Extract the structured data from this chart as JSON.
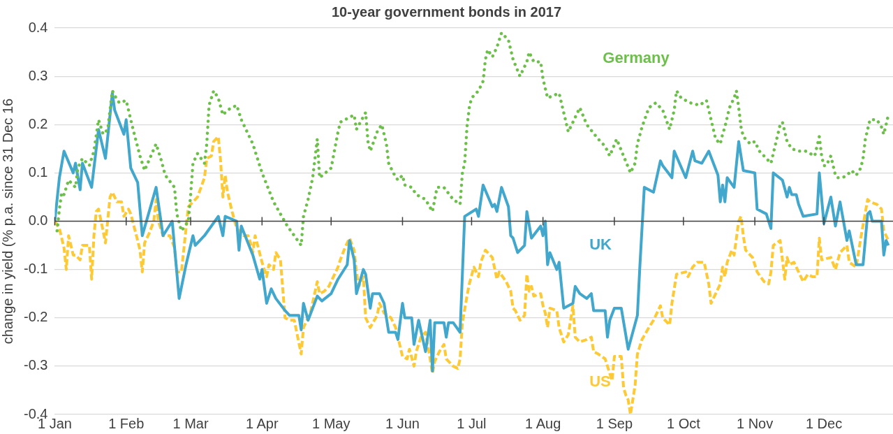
{
  "chart_data": {
    "type": "line",
    "title": "10-year government bonds in 2017",
    "ylabel": "change in yield (% p.a. since 31 Dec 16",
    "grid": "y",
    "xlim": [
      "2017-01-01",
      "2017-12-31"
    ],
    "xticks": [
      {
        "value": "2017-01-01",
        "label": "1 Jan"
      },
      {
        "value": "2017-02-01",
        "label": "1 Feb"
      },
      {
        "value": "2017-03-01",
        "label": "1 Mar"
      },
      {
        "value": "2017-04-01",
        "label": "1 Apr"
      },
      {
        "value": "2017-05-01",
        "label": "1 May"
      },
      {
        "value": "2017-06-01",
        "label": "1 Jun"
      },
      {
        "value": "2017-07-01",
        "label": "1 Jul"
      },
      {
        "value": "2017-08-01",
        "label": "1 Aug"
      },
      {
        "value": "2017-09-01",
        "label": "1 Sep"
      },
      {
        "value": "2017-10-01",
        "label": "1 Oct"
      },
      {
        "value": "2017-11-01",
        "label": "1 Nov"
      },
      {
        "value": "2017-12-01",
        "label": "1 Dec"
      }
    ],
    "ylim": [
      -0.4,
      0.4
    ],
    "yticks": [
      -0.4,
      -0.3,
      -0.2,
      -0.1,
      {
        "value": 0,
        "label": "0.0"
      },
      0.1,
      0.2,
      0.3,
      0.4
    ],
    "series": [
      {
        "name": "Germany",
        "color": "#6cc04a",
        "line_style": "dotted",
        "x": [
          "2017-01-02",
          "2017-01-03",
          "2017-01-04",
          "2017-01-05",
          "2017-01-07",
          "2017-01-10",
          "2017-01-11",
          "2017-01-13",
          "2017-01-16",
          "2017-01-18",
          "2017-01-20",
          "2017-01-22",
          "2017-01-24",
          "2017-01-26",
          "2017-01-27",
          "2017-01-29",
          "2017-02-01",
          "2017-02-03",
          "2017-02-04",
          "2017-02-07",
          "2017-02-09",
          "2017-02-14",
          "2017-02-16",
          "2017-02-18",
          "2017-02-22",
          "2017-02-23",
          "2017-02-25",
          "2017-02-28",
          "2017-03-01",
          "2017-03-02",
          "2017-03-04",
          "2017-03-07",
          "2017-03-08",
          "2017-03-09",
          "2017-03-11",
          "2017-03-13",
          "2017-03-15",
          "2017-03-17",
          "2017-03-21",
          "2017-03-23",
          "2017-03-28",
          "2017-04-01",
          "2017-04-06",
          "2017-04-12",
          "2017-04-18",
          "2017-04-19",
          "2017-04-21",
          "2017-04-23",
          "2017-04-25",
          "2017-04-26",
          "2017-05-01",
          "2017-05-04",
          "2017-05-05",
          "2017-05-11",
          "2017-05-12",
          "2017-05-16",
          "2017-05-17",
          "2017-05-18",
          "2017-05-21",
          "2017-05-23",
          "2017-05-25",
          "2017-05-26",
          "2017-05-28",
          "2017-05-30",
          "2017-06-01",
          "2017-06-02",
          "2017-06-05",
          "2017-06-07",
          "2017-06-11",
          "2017-06-14",
          "2017-06-16",
          "2017-06-19",
          "2017-06-23",
          "2017-06-26",
          "2017-06-27",
          "2017-06-28",
          "2017-06-29",
          "2017-06-30",
          "2017-07-01",
          "2017-07-04",
          "2017-07-06",
          "2017-07-07",
          "2017-07-08",
          "2017-07-10",
          "2017-07-12",
          "2017-07-14",
          "2017-07-17",
          "2017-07-19",
          "2017-07-22",
          "2017-07-25",
          "2017-07-26",
          "2017-07-28",
          "2017-07-31",
          "2017-08-01",
          "2017-08-03",
          "2017-08-08",
          "2017-08-10",
          "2017-08-12",
          "2017-08-17",
          "2017-08-20",
          "2017-08-25",
          "2017-08-28",
          "2017-08-30",
          "2017-09-02",
          "2017-09-05",
          "2017-09-08",
          "2017-09-10",
          "2017-09-11",
          "2017-09-13",
          "2017-09-16",
          "2017-09-19",
          "2017-09-22",
          "2017-09-25",
          "2017-09-27",
          "2017-09-28",
          "2017-09-30",
          "2017-10-04",
          "2017-10-08",
          "2017-10-11",
          "2017-10-13",
          "2017-10-15",
          "2017-10-17",
          "2017-10-18",
          "2017-10-19",
          "2017-10-21",
          "2017-10-23",
          "2017-10-24",
          "2017-10-25",
          "2017-10-26",
          "2017-10-27",
          "2017-10-30",
          "2017-11-01",
          "2017-11-03",
          "2017-11-06",
          "2017-11-08",
          "2017-11-09",
          "2017-11-10",
          "2017-11-11",
          "2017-11-12",
          "2017-11-13",
          "2017-11-14",
          "2017-11-15",
          "2017-11-17",
          "2017-11-20",
          "2017-11-23",
          "2017-11-25",
          "2017-11-27",
          "2017-11-28",
          "2017-11-29",
          "2017-11-30",
          "2017-12-01",
          "2017-12-02",
          "2017-12-04",
          "2017-12-05",
          "2017-12-06",
          "2017-12-07",
          "2017-12-09",
          "2017-12-11",
          "2017-12-13",
          "2017-12-15",
          "2017-12-17",
          "2017-12-18",
          "2017-12-19",
          "2017-12-20",
          "2017-12-21",
          "2017-12-24",
          "2017-12-26",
          "2017-12-27",
          "2017-12-28",
          "2017-12-29"
        ],
        "values": [
          -0.02,
          0.025,
          0.06,
          0.055,
          0.085,
          0.07,
          0.11,
          0.13,
          0.115,
          0.145,
          0.21,
          0.18,
          0.19,
          0.27,
          0.26,
          0.245,
          0.25,
          0.21,
          0.19,
          0.135,
          0.105,
          0.16,
          0.13,
          0.095,
          0.07,
          0.015,
          -0.02,
          0.0,
          0.055,
          0.12,
          0.14,
          0.12,
          0.16,
          0.24,
          0.27,
          0.255,
          0.22,
          0.23,
          0.24,
          0.21,
          0.16,
          0.1,
          0.04,
          -0.01,
          -0.05,
          0.01,
          0.045,
          0.09,
          0.17,
          0.09,
          0.11,
          0.185,
          0.205,
          0.22,
          0.19,
          0.225,
          0.165,
          0.145,
          0.185,
          0.2,
          0.16,
          0.12,
          0.1,
          0.085,
          0.095,
          0.075,
          0.07,
          0.055,
          0.045,
          0.02,
          0.07,
          0.07,
          0.045,
          0.035,
          0.1,
          0.12,
          0.195,
          0.235,
          0.255,
          0.27,
          0.29,
          0.335,
          0.355,
          0.34,
          0.36,
          0.39,
          0.375,
          0.335,
          0.3,
          0.33,
          0.35,
          0.33,
          0.33,
          0.295,
          0.255,
          0.265,
          0.225,
          0.185,
          0.235,
          0.2,
          0.17,
          0.155,
          0.135,
          0.17,
          0.135,
          0.1,
          0.12,
          0.16,
          0.195,
          0.235,
          0.245,
          0.23,
          0.19,
          0.23,
          0.27,
          0.255,
          0.245,
          0.24,
          0.25,
          0.21,
          0.17,
          0.16,
          0.18,
          0.195,
          0.235,
          0.255,
          0.27,
          0.235,
          0.195,
          0.175,
          0.16,
          0.165,
          0.145,
          0.13,
          0.12,
          0.14,
          0.16,
          0.18,
          0.2,
          0.205,
          0.185,
          0.165,
          0.15,
          0.145,
          0.145,
          0.14,
          0.135,
          0.155,
          0.175,
          0.135,
          0.115,
          0.115,
          0.135,
          0.115,
          0.095,
          0.09,
          0.09,
          0.095,
          0.105,
          0.095,
          0.11,
          0.13,
          0.17,
          0.19,
          0.21,
          0.21,
          0.195,
          0.18,
          0.2,
          0.22
        ]
      },
      {
        "name": "UK",
        "color": "#41a7cc",
        "line_style": "solid",
        "x": [
          "2017-01-01",
          "2017-01-03",
          "2017-01-05",
          "2017-01-09",
          "2017-01-10",
          "2017-01-12",
          "2017-01-13",
          "2017-01-17",
          "2017-01-20",
          "2017-01-23",
          "2017-01-26",
          "2017-01-27",
          "2017-01-31",
          "2017-02-01",
          "2017-02-03",
          "2017-02-06",
          "2017-02-08",
          "2017-02-14",
          "2017-02-17",
          "2017-02-21",
          "2017-02-24",
          "2017-02-27",
          "2017-03-02",
          "2017-03-03",
          "2017-03-07",
          "2017-03-13",
          "2017-03-15",
          "2017-03-16",
          "2017-03-21",
          "2017-03-22",
          "2017-03-23",
          "2017-03-28",
          "2017-03-31",
          "2017-04-01",
          "2017-04-03",
          "2017-04-05",
          "2017-04-07",
          "2017-04-11",
          "2017-04-13",
          "2017-04-17",
          "2017-04-18",
          "2017-04-19",
          "2017-04-21",
          "2017-04-25",
          "2017-04-27",
          "2017-05-01",
          "2017-05-04",
          "2017-05-08",
          "2017-05-09",
          "2017-05-11",
          "2017-05-12",
          "2017-05-15",
          "2017-05-16",
          "2017-05-18",
          "2017-05-19",
          "2017-05-22",
          "2017-05-24",
          "2017-05-26",
          "2017-05-29",
          "2017-05-30",
          "2017-06-01",
          "2017-06-02",
          "2017-06-05",
          "2017-06-06",
          "2017-06-08",
          "2017-06-11",
          "2017-06-13",
          "2017-06-14",
          "2017-06-15",
          "2017-06-19",
          "2017-06-20",
          "2017-06-21",
          "2017-06-23",
          "2017-06-26",
          "2017-06-28",
          "2017-07-03",
          "2017-07-04",
          "2017-07-06",
          "2017-07-10",
          "2017-07-11",
          "2017-07-12",
          "2017-07-14",
          "2017-07-17",
          "2017-07-18",
          "2017-07-19",
          "2017-07-21",
          "2017-07-24",
          "2017-07-25",
          "2017-07-27",
          "2017-07-31",
          "2017-08-01",
          "2017-08-02",
          "2017-08-03",
          "2017-08-04",
          "2017-08-07",
          "2017-08-08",
          "2017-08-10",
          "2017-08-14",
          "2017-08-15",
          "2017-08-17",
          "2017-08-20",
          "2017-08-22",
          "2017-08-23",
          "2017-08-28",
          "2017-08-29",
          "2017-08-30",
          "2017-09-01",
          "2017-09-04",
          "2017-09-07",
          "2017-09-11",
          "2017-09-12",
          "2017-09-14",
          "2017-09-18",
          "2017-09-21",
          "2017-09-22",
          "2017-09-26",
          "2017-09-27",
          "2017-10-02",
          "2017-10-05",
          "2017-10-06",
          "2017-10-09",
          "2017-10-12",
          "2017-10-16",
          "2017-10-17",
          "2017-10-18",
          "2017-10-19",
          "2017-10-20",
          "2017-10-23",
          "2017-10-25",
          "2017-10-27",
          "2017-11-01",
          "2017-11-02",
          "2017-11-06",
          "2017-11-08",
          "2017-11-09",
          "2017-11-13",
          "2017-11-15",
          "2017-11-16",
          "2017-11-17",
          "2017-11-19",
          "2017-11-20",
          "2017-11-22",
          "2017-11-28",
          "2017-11-29",
          "2017-12-01",
          "2017-12-04",
          "2017-12-06",
          "2017-12-08",
          "2017-12-11",
          "2017-12-12",
          "2017-12-15",
          "2017-12-18",
          "2017-12-20",
          "2017-12-21",
          "2017-12-22",
          "2017-12-26",
          "2017-12-27",
          "2017-12-28",
          "2017-12-29"
        ],
        "values": [
          0.0,
          0.09,
          0.145,
          0.1,
          0.12,
          0.065,
          0.12,
          0.07,
          0.19,
          0.13,
          0.265,
          0.23,
          0.18,
          0.21,
          0.11,
          0.08,
          -0.03,
          0.07,
          -0.03,
          0.0,
          -0.16,
          -0.09,
          -0.03,
          -0.05,
          -0.03,
          0.01,
          -0.03,
          0.01,
          0.0,
          -0.06,
          -0.01,
          -0.07,
          -0.12,
          -0.1,
          -0.17,
          -0.14,
          -0.16,
          -0.185,
          -0.195,
          -0.195,
          -0.225,
          -0.17,
          -0.205,
          -0.155,
          -0.165,
          -0.15,
          -0.12,
          -0.09,
          -0.04,
          -0.08,
          -0.15,
          -0.1,
          -0.11,
          -0.18,
          -0.15,
          -0.15,
          -0.17,
          -0.23,
          -0.23,
          -0.245,
          -0.17,
          -0.2,
          -0.2,
          -0.255,
          -0.205,
          -0.27,
          -0.205,
          -0.31,
          -0.21,
          -0.21,
          -0.24,
          -0.21,
          -0.21,
          -0.23,
          0.01,
          0.025,
          0.01,
          0.075,
          0.03,
          0.035,
          0.02,
          0.07,
          0.03,
          -0.03,
          -0.035,
          -0.065,
          -0.05,
          0.02,
          -0.035,
          -0.01,
          -0.03,
          0.0,
          -0.09,
          -0.065,
          -0.1,
          -0.085,
          -0.18,
          -0.17,
          -0.135,
          -0.15,
          -0.16,
          -0.15,
          -0.185,
          -0.185,
          -0.24,
          -0.205,
          -0.18,
          -0.18,
          -0.265,
          -0.195,
          -0.1,
          0.07,
          0.06,
          0.125,
          0.115,
          0.09,
          0.145,
          0.09,
          0.145,
          0.125,
          0.12,
          0.145,
          0.095,
          0.04,
          0.075,
          0.04,
          0.09,
          0.07,
          0.165,
          0.105,
          0.1,
          0.025,
          0.015,
          -0.015,
          0.1,
          0.085,
          0.05,
          0.07,
          0.055,
          0.055,
          0.035,
          0.01,
          0.015,
          0.1,
          -0.005,
          0.05,
          -0.01,
          0.04,
          -0.04,
          -0.02,
          -0.09,
          -0.09,
          0.015,
          0.02,
          0.0,
          0.0,
          -0.07,
          -0.04,
          -0.05
        ]
      },
      {
        "name": "US",
        "color": "#fdc935",
        "line_style": "dashed",
        "x": [
          "2017-01-01",
          "2017-01-03",
          "2017-01-05",
          "2017-01-06",
          "2017-01-07",
          "2017-01-08",
          "2017-01-09",
          "2017-01-10",
          "2017-01-12",
          "2017-01-13",
          "2017-01-16",
          "2017-01-17",
          "2017-01-18",
          "2017-01-19",
          "2017-01-20",
          "2017-01-22",
          "2017-01-23",
          "2017-01-25",
          "2017-01-26",
          "2017-01-28",
          "2017-01-30",
          "2017-01-31",
          "2017-02-02",
          "2017-02-03",
          "2017-02-06",
          "2017-02-07",
          "2017-02-08",
          "2017-02-09",
          "2017-02-11",
          "2017-02-13",
          "2017-02-14",
          "2017-02-15",
          "2017-02-17",
          "2017-02-20",
          "2017-02-22",
          "2017-02-23",
          "2017-02-25",
          "2017-02-28",
          "2017-03-04",
          "2017-03-07",
          "2017-03-08",
          "2017-03-10",
          "2017-03-11",
          "2017-03-13",
          "2017-03-14",
          "2017-03-15",
          "2017-03-16",
          "2017-03-17",
          "2017-03-19",
          "2017-03-21",
          "2017-03-24",
          "2017-03-26",
          "2017-03-27",
          "2017-03-28",
          "2017-03-29",
          "2017-04-01",
          "2017-04-03",
          "2017-04-04",
          "2017-04-06",
          "2017-04-07",
          "2017-04-09",
          "2017-04-11",
          "2017-04-13",
          "2017-04-15",
          "2017-04-18",
          "2017-04-19",
          "2017-04-22",
          "2017-04-25",
          "2017-04-26",
          "2017-04-28",
          "2017-04-30",
          "2017-05-04",
          "2017-05-05",
          "2017-05-07",
          "2017-05-09",
          "2017-05-11",
          "2017-05-12",
          "2017-05-13",
          "2017-05-15",
          "2017-05-16",
          "2017-05-18",
          "2017-05-21",
          "2017-05-22",
          "2017-05-24",
          "2017-05-27",
          "2017-05-29",
          "2017-05-30",
          "2017-06-01",
          "2017-06-03",
          "2017-06-04",
          "2017-06-06",
          "2017-06-07",
          "2017-06-09",
          "2017-06-11",
          "2017-06-13",
          "2017-06-14",
          "2017-06-15",
          "2017-06-17",
          "2017-06-19",
          "2017-06-20",
          "2017-06-23",
          "2017-06-25",
          "2017-06-26",
          "2017-06-27",
          "2017-06-29",
          "2017-06-30",
          "2017-07-02",
          "2017-07-04",
          "2017-07-05",
          "2017-07-07",
          "2017-07-10",
          "2017-07-12",
          "2017-07-13",
          "2017-07-16",
          "2017-07-18",
          "2017-07-19",
          "2017-07-20",
          "2017-07-22",
          "2017-07-24",
          "2017-07-25",
          "2017-07-26",
          "2017-07-27",
          "2017-07-28",
          "2017-07-31",
          "2017-08-01",
          "2017-08-02",
          "2017-08-03",
          "2017-08-04",
          "2017-08-07",
          "2017-08-08",
          "2017-08-10",
          "2017-08-12",
          "2017-08-14",
          "2017-08-15",
          "2017-08-17",
          "2017-08-20",
          "2017-08-22",
          "2017-08-23",
          "2017-08-25",
          "2017-08-28",
          "2017-08-31",
          "2017-09-01",
          "2017-09-04",
          "2017-09-05",
          "2017-09-06",
          "2017-09-07",
          "2017-09-08",
          "2017-09-10",
          "2017-09-11",
          "2017-09-13",
          "2017-09-16",
          "2017-09-18",
          "2017-09-21",
          "2017-09-22",
          "2017-09-25",
          "2017-09-26",
          "2017-09-28",
          "2017-10-02",
          "2017-10-03",
          "2017-10-05",
          "2017-10-07",
          "2017-10-10",
          "2017-10-12",
          "2017-10-13",
          "2017-10-15",
          "2017-10-17",
          "2017-10-18",
          "2017-10-19",
          "2017-10-20",
          "2017-10-22",
          "2017-10-23",
          "2017-10-25",
          "2017-10-26",
          "2017-10-27",
          "2017-10-28",
          "2017-10-31",
          "2017-11-02",
          "2017-11-05",
          "2017-11-07",
          "2017-11-08",
          "2017-11-09",
          "2017-11-12",
          "2017-11-14",
          "2017-11-15",
          "2017-11-16",
          "2017-11-18",
          "2017-11-20",
          "2017-11-22",
          "2017-11-24",
          "2017-11-26",
          "2017-11-28",
          "2017-11-29",
          "2017-11-30",
          "2017-12-04",
          "2017-12-06",
          "2017-12-08",
          "2017-12-11",
          "2017-12-12",
          "2017-12-15",
          "2017-12-17",
          "2017-12-20",
          "2017-12-21",
          "2017-12-24",
          "2017-12-26",
          "2017-12-27",
          "2017-12-29"
        ],
        "values": [
          0.0,
          -0.015,
          -0.055,
          -0.1,
          -0.03,
          -0.05,
          -0.07,
          -0.07,
          -0.08,
          -0.05,
          -0.05,
          -0.12,
          -0.03,
          0.02,
          0.025,
          -0.02,
          -0.045,
          0.05,
          0.06,
          0.04,
          0.04,
          0.01,
          0.025,
          0.015,
          -0.04,
          -0.06,
          -0.105,
          -0.045,
          -0.025,
          0.0,
          0.045,
          0.0,
          -0.03,
          -0.03,
          -0.055,
          -0.105,
          -0.105,
          0.03,
          0.05,
          0.09,
          0.13,
          0.135,
          0.165,
          0.175,
          0.125,
          0.05,
          0.095,
          0.06,
          0.02,
          -0.015,
          -0.03,
          -0.03,
          -0.045,
          -0.065,
          -0.03,
          -0.085,
          -0.115,
          -0.09,
          -0.1,
          -0.065,
          -0.08,
          -0.2,
          -0.205,
          -0.205,
          -0.275,
          -0.22,
          -0.19,
          -0.125,
          -0.15,
          -0.145,
          -0.135,
          -0.095,
          -0.08,
          -0.055,
          -0.035,
          -0.06,
          -0.105,
          -0.135,
          -0.115,
          -0.2,
          -0.22,
          -0.195,
          -0.17,
          -0.19,
          -0.2,
          -0.22,
          -0.24,
          -0.28,
          -0.285,
          -0.265,
          -0.3,
          -0.27,
          -0.24,
          -0.23,
          -0.285,
          -0.315,
          -0.29,
          -0.27,
          -0.255,
          -0.285,
          -0.3,
          -0.305,
          -0.285,
          -0.21,
          -0.155,
          -0.13,
          -0.095,
          -0.115,
          -0.085,
          -0.06,
          -0.075,
          -0.12,
          -0.105,
          -0.125,
          -0.145,
          -0.18,
          -0.185,
          -0.205,
          -0.195,
          -0.11,
          -0.145,
          -0.135,
          -0.155,
          -0.15,
          -0.175,
          -0.19,
          -0.22,
          -0.18,
          -0.185,
          -0.22,
          -0.25,
          -0.235,
          -0.175,
          -0.24,
          -0.25,
          -0.245,
          -0.24,
          -0.27,
          -0.275,
          -0.285,
          -0.33,
          -0.28,
          -0.28,
          -0.345,
          -0.36,
          -0.37,
          -0.4,
          -0.34,
          -0.275,
          -0.245,
          -0.22,
          -0.205,
          -0.175,
          -0.2,
          -0.215,
          -0.17,
          -0.11,
          -0.105,
          -0.115,
          -0.095,
          -0.085,
          -0.085,
          -0.13,
          -0.17,
          -0.15,
          -0.13,
          -0.095,
          -0.115,
          -0.085,
          -0.06,
          -0.07,
          0.0,
          0.01,
          -0.03,
          -0.06,
          -0.075,
          -0.105,
          -0.125,
          -0.13,
          -0.105,
          -0.05,
          -0.04,
          -0.12,
          -0.075,
          -0.09,
          -0.085,
          -0.105,
          -0.125,
          -0.11,
          -0.115,
          -0.115,
          -0.035,
          -0.08,
          -0.075,
          -0.1,
          -0.065,
          -0.05,
          -0.085,
          -0.095,
          -0.035,
          0.045,
          0.04,
          0.035,
          0.025,
          -0.02,
          -0.04
        ]
      }
    ]
  }
}
